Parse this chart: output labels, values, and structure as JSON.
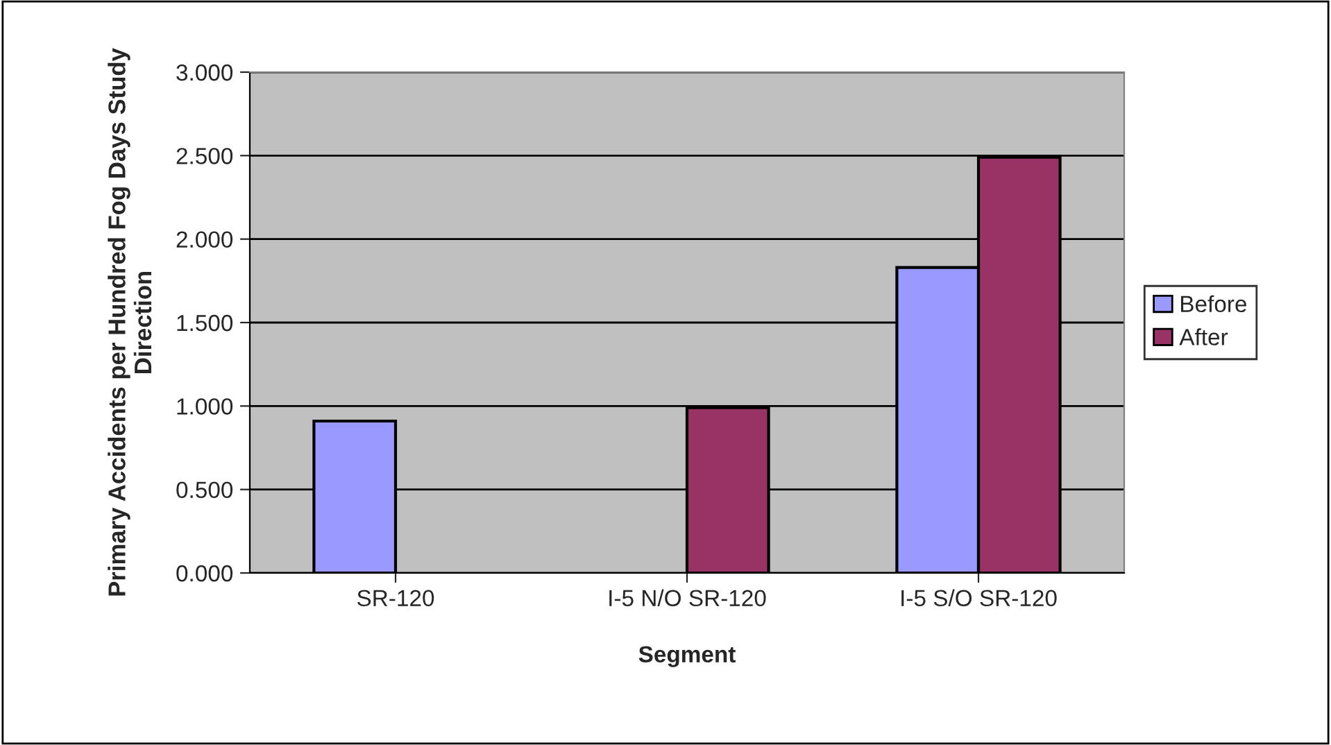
{
  "chart_data": {
    "type": "bar",
    "xlabel": "Segment",
    "ylabel": "Primary Accidents per Hundred Fog Days Study Direction",
    "categories": [
      "SR-120",
      "I-5 N/O SR-120",
      "I-5 S/O SR-120"
    ],
    "series": [
      {
        "name": "Before",
        "color": "#9999ff",
        "values": [
          0.91,
          null,
          1.83
        ]
      },
      {
        "name": "After",
        "color": "#993366",
        "values": [
          null,
          0.99,
          2.49
        ]
      }
    ],
    "ylim": [
      0,
      3
    ],
    "yticks": [
      {
        "value": 0,
        "label": "0.000"
      },
      {
        "value": 0.5,
        "label": "0.500"
      },
      {
        "value": 1,
        "label": "1.000"
      },
      {
        "value": 1.5,
        "label": "1.500"
      },
      {
        "value": 2,
        "label": "2.000"
      },
      {
        "value": 2.5,
        "label": "2.500"
      },
      {
        "value": 3,
        "label": "3.000"
      }
    ],
    "grid": "y",
    "legend": "right"
  }
}
